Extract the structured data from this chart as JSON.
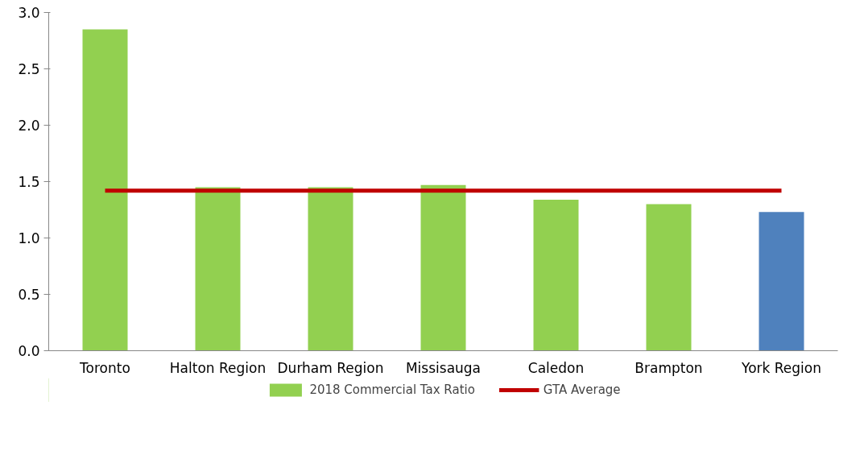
{
  "chart_data": {
    "type": "bar",
    "categories": [
      "Toronto",
      "Halton Region",
      "Durham Region",
      "Missisauga",
      "Caledon",
      "Brampton",
      "York Region"
    ],
    "series": [
      {
        "name": "2018 Commercial Tax Ratio",
        "color": "#92d050",
        "colors": [
          "#92d050",
          "#92d050",
          "#92d050",
          "#92d050",
          "#92d050",
          "#92d050",
          "#4f81bd"
        ],
        "values": [
          2.85,
          1.45,
          1.45,
          1.47,
          1.34,
          1.3,
          1.23
        ]
      },
      {
        "name": "GTA Average",
        "type": "line",
        "color": "#c00000",
        "values": [
          1.42,
          1.42,
          1.42,
          1.42,
          1.42,
          1.42,
          1.42
        ]
      }
    ],
    "ylim": [
      0,
      3
    ],
    "yticks": [
      {
        "value": 0,
        "label": "0.0"
      },
      {
        "value": 0.5,
        "label": "0.5"
      },
      {
        "value": 1,
        "label": "1.0"
      },
      {
        "value": 1.5,
        "label": "1.5"
      },
      {
        "value": 2,
        "label": "2.0"
      },
      {
        "value": 2.5,
        "label": "2.5"
      },
      {
        "value": 3,
        "label": "3.0"
      }
    ],
    "grid": false,
    "legend": "bottom",
    "line_style": "solid",
    "marker": "none"
  }
}
